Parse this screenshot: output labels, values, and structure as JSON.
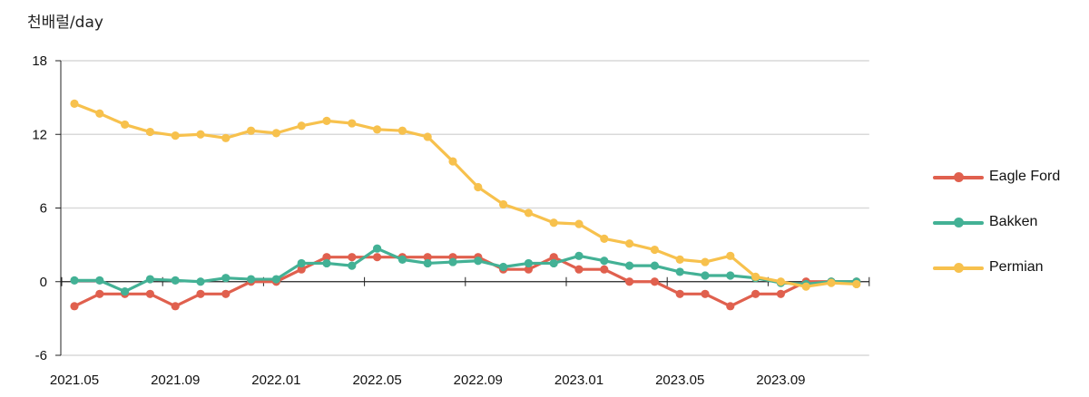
{
  "chart_data": {
    "type": "line",
    "unit_label": "천배럴/day",
    "x": [
      "2021.05",
      "2021.06",
      "2021.07",
      "2021.08",
      "2021.09",
      "2021.10",
      "2021.11",
      "2021.12",
      "2022.01",
      "2022.02",
      "2022.03",
      "2022.04",
      "2022.05",
      "2022.06",
      "2022.07",
      "2022.08",
      "2022.09",
      "2022.10",
      "2022.11",
      "2022.12",
      "2023.01",
      "2023.02",
      "2023.03",
      "2023.04",
      "2023.05",
      "2023.06",
      "2023.07",
      "2023.08",
      "2023.09",
      "2023.10",
      "2023.11",
      "2023.12"
    ],
    "x_tick_labels": [
      "2021.05",
      "2021.09",
      "2022.01",
      "2022.05",
      "2022.09",
      "2023.01",
      "2023.05",
      "2023.09"
    ],
    "y_ticks": [
      18,
      12,
      6,
      0,
      -6
    ],
    "ylim": [
      -6,
      18
    ],
    "grid": true,
    "legend_position": "right",
    "series": [
      {
        "name": "Eagle Ford",
        "color": "#e0604e",
        "values": [
          -2,
          -1,
          -1,
          -1,
          -2,
          -1,
          -1,
          0,
          0,
          1,
          2,
          2,
          2,
          2,
          2,
          2,
          2,
          1,
          1,
          2,
          1,
          1,
          0,
          0,
          -1,
          -1,
          -2,
          -1,
          -1,
          0,
          0,
          0
        ]
      },
      {
        "name": "Bakken",
        "color": "#43b195",
        "values": [
          0.1,
          0.1,
          -0.8,
          0.2,
          0.1,
          0,
          0.3,
          0.2,
          0.2,
          1.5,
          1.5,
          1.3,
          2.7,
          1.8,
          1.5,
          1.6,
          1.7,
          1.2,
          1.5,
          1.5,
          2.1,
          1.7,
          1.3,
          1.3,
          0.8,
          0.5,
          0.5,
          0.3,
          -0.1,
          -0.2,
          0,
          0
        ]
      },
      {
        "name": "Permian",
        "color": "#f7c14d",
        "values": [
          14.5,
          13.7,
          12.8,
          12.2,
          11.9,
          12.0,
          11.7,
          12.3,
          12.1,
          12.7,
          13.1,
          12.9,
          12.4,
          12.3,
          11.8,
          9.8,
          7.7,
          6.3,
          5.6,
          4.8,
          4.7,
          3.5,
          3.1,
          2.6,
          1.8,
          1.6,
          2.1,
          0.4,
          0,
          -0.4,
          -0.1,
          -0.2
        ]
      }
    ]
  }
}
